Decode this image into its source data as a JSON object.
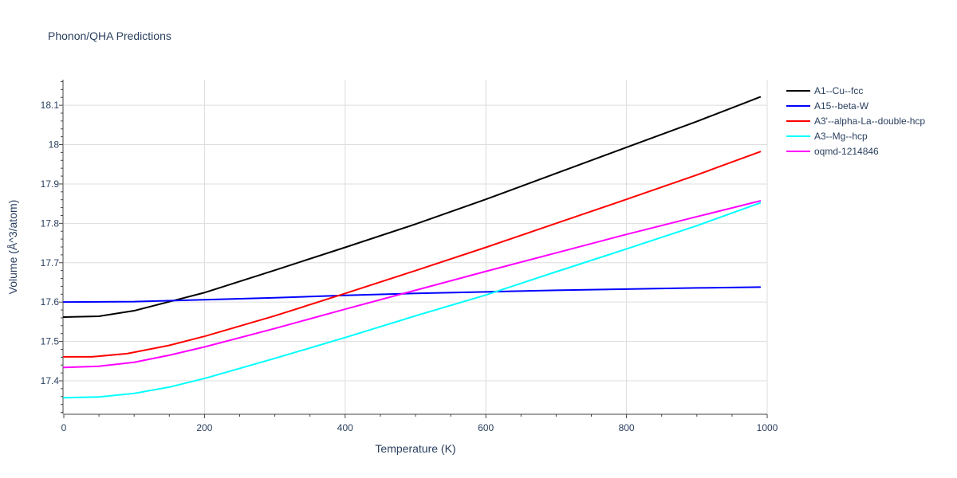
{
  "chart_data": {
    "type": "line",
    "title": "Phonon/QHA Predictions",
    "xlabel": "Temperature (K)",
    "ylabel": "Volume (Å^3/atom)",
    "xlim": [
      0,
      1000
    ],
    "ylim": [
      17.315,
      18.165
    ],
    "x_ticks": [
      0,
      200,
      400,
      600,
      800,
      1000
    ],
    "x_tick_labels": [
      "0",
      "200",
      "400",
      "600",
      "800",
      "1000"
    ],
    "y_ticks": [
      17.4,
      17.5,
      17.6,
      17.7,
      17.8,
      17.9,
      18.0,
      18.1
    ],
    "y_tick_labels": [
      "17.4",
      "17.5",
      "17.6",
      "17.7",
      "17.8",
      "17.9",
      "18",
      "18.1"
    ],
    "grid": true,
    "legend_position": "top-right",
    "series": [
      {
        "name": "A1--Cu--fcc",
        "color": "#000000",
        "x": [
          0,
          50,
          100,
          150,
          200,
          300,
          400,
          500,
          600,
          700,
          800,
          900,
          990
        ],
        "y": [
          17.562,
          17.564,
          17.578,
          17.601,
          17.624,
          17.681,
          17.739,
          17.798,
          17.861,
          17.927,
          17.993,
          18.059,
          18.121
        ]
      },
      {
        "name": "A15--beta-W",
        "color": "#0000ff",
        "x": [
          0,
          100,
          200,
          300,
          400,
          500,
          600,
          700,
          800,
          900,
          990
        ],
        "y": [
          17.6,
          17.601,
          17.606,
          17.611,
          17.617,
          17.622,
          17.626,
          17.63,
          17.633,
          17.636,
          17.638
        ]
      },
      {
        "name": "A3'--alpha-La--double-hcp",
        "color": "#ff0000",
        "x": [
          0,
          40,
          90,
          150,
          200,
          300,
          400,
          500,
          600,
          700,
          800,
          900,
          990
        ],
        "y": [
          17.461,
          17.461,
          17.469,
          17.49,
          17.513,
          17.565,
          17.622,
          17.68,
          17.739,
          17.8,
          17.861,
          17.923,
          17.982
        ]
      },
      {
        "name": "A3--Mg--hcp",
        "color": "#00ffff",
        "x": [
          0,
          50,
          100,
          150,
          200,
          300,
          400,
          500,
          600,
          700,
          800,
          900,
          990
        ],
        "y": [
          17.357,
          17.359,
          17.368,
          17.384,
          17.406,
          17.457,
          17.51,
          17.565,
          17.618,
          17.677,
          17.735,
          17.794,
          17.852
        ]
      },
      {
        "name": "oqmd-1214846",
        "color": "#ff00ff",
        "x": [
          0,
          50,
          100,
          150,
          200,
          300,
          400,
          500,
          600,
          700,
          800,
          900,
          990
        ],
        "y": [
          17.434,
          17.437,
          17.447,
          17.465,
          17.486,
          17.533,
          17.582,
          17.63,
          17.678,
          17.725,
          17.772,
          17.817,
          17.857
        ]
      }
    ]
  }
}
